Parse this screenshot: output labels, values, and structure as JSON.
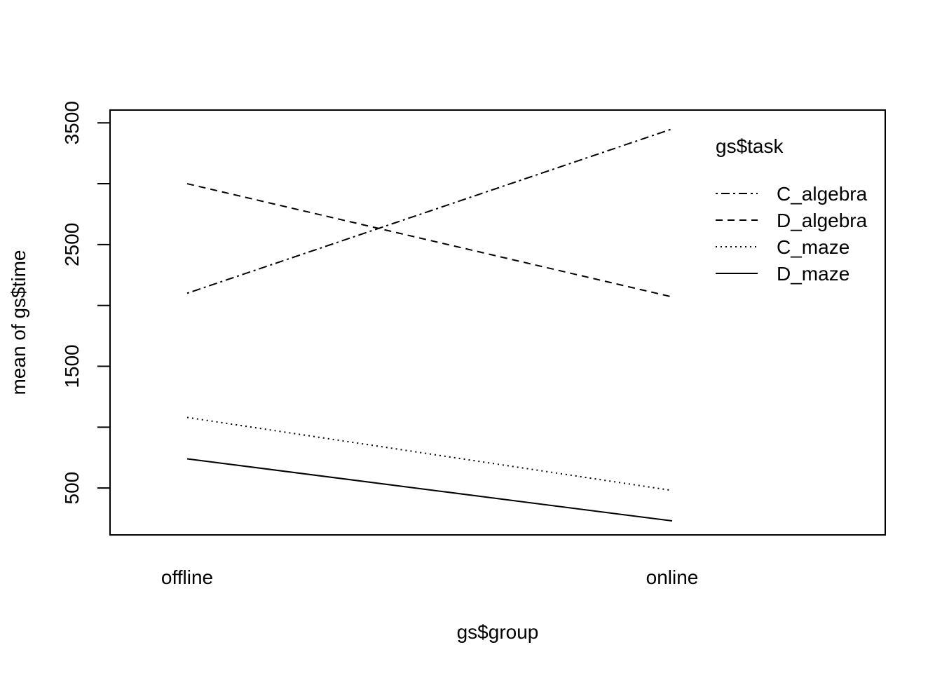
{
  "chart_data": {
    "type": "line",
    "categories": [
      "offline",
      "online"
    ],
    "xlabel": "gs$group",
    "ylabel": "mean of  gs$time",
    "ylim": [
      115,
      3605
    ],
    "yticks": [
      500,
      1500,
      2500,
      3500
    ],
    "legend_title": "gs$task",
    "legend_position": "top-right",
    "grid": false,
    "series": [
      {
        "name": "C_algebra",
        "linestyle": "dotdash",
        "values": [
          2100,
          3450
        ]
      },
      {
        "name": "D_algebra",
        "linestyle": "dashed",
        "values": [
          3000,
          2070
        ]
      },
      {
        "name": "C_maze",
        "linestyle": "dotted",
        "values": [
          1080,
          480
        ]
      },
      {
        "name": "D_maze",
        "linestyle": "solid",
        "values": [
          740,
          230
        ]
      }
    ]
  }
}
